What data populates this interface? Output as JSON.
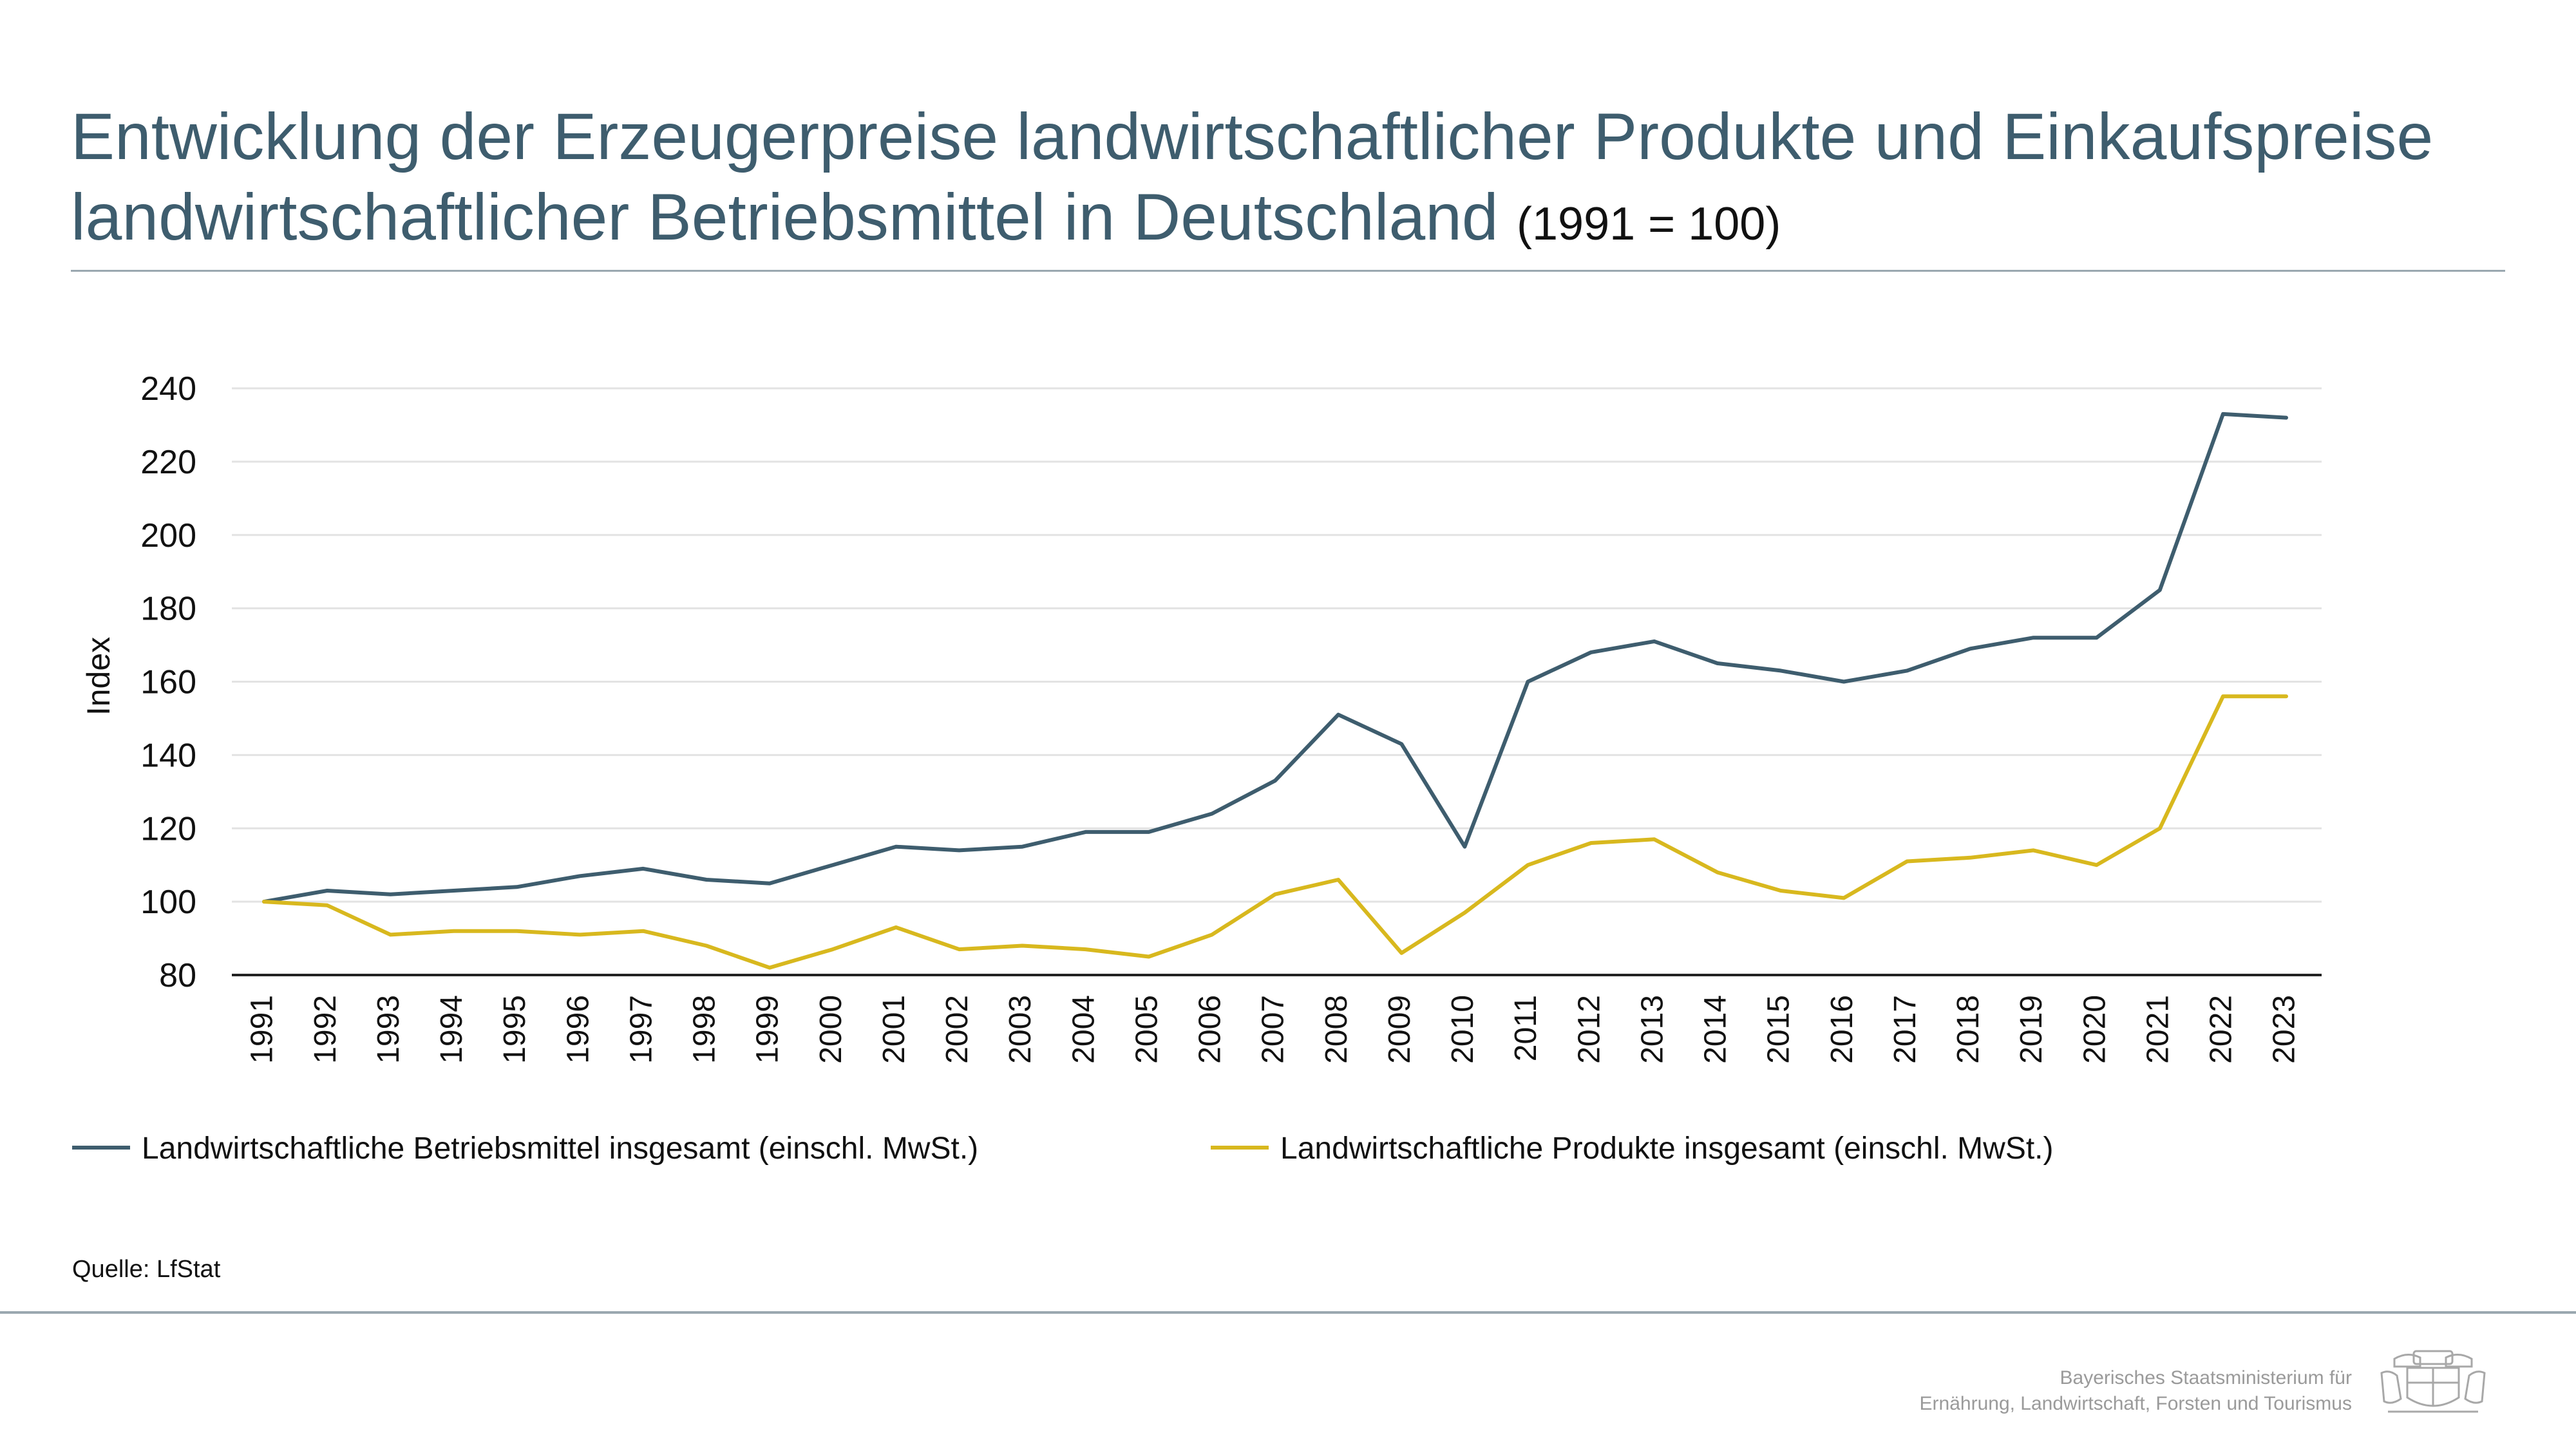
{
  "title": {
    "line1": "Entwicklung der Erzeugerpreise landwirtschaftlicher Produkte und Einkaufspreise",
    "line2": "landwirtschaftlicher Betriebsmittel in Deutschland",
    "suffix": "(1991 = 100)"
  },
  "source": "Quelle: LfStat",
  "ministry": {
    "line1": "Bayerisches Staatsministerium für",
    "line2": "Ernährung, Landwirtschaft, Forsten und Tourismus"
  },
  "chart_data": {
    "type": "line",
    "ylabel": "Index",
    "ylim": [
      80,
      240
    ],
    "yticks": [
      80,
      100,
      120,
      140,
      160,
      180,
      200,
      220,
      240
    ],
    "grid": "horizontal",
    "legend_position": "bottom",
    "x": [
      "1991",
      "1992",
      "1993",
      "1994",
      "1995",
      "1996",
      "1997",
      "1998",
      "1999",
      "2000",
      "2001",
      "2002",
      "2003",
      "2004",
      "2005",
      "2006",
      "2007",
      "2008",
      "2009",
      "2010",
      "2011",
      "2012",
      "2013",
      "2014",
      "2015",
      "2016",
      "2017",
      "2018",
      "2019",
      "2020",
      "2021",
      "2022",
      "2023"
    ],
    "series": [
      {
        "name": "Landwirtschaftliche Betriebsmittel insgesamt (einschl. MwSt.)",
        "color": "#3e5d6e",
        "values": [
          100,
          103,
          102,
          103,
          104,
          107,
          109,
          106,
          105,
          110,
          115,
          114,
          115,
          119,
          119,
          124,
          133,
          151,
          143,
          115,
          160,
          168,
          171,
          165,
          163,
          160,
          163,
          169,
          172,
          172,
          185,
          233,
          232
        ]
      },
      {
        "name": "Landwirtschaftliche Produkte insgesamt (einschl. MwSt.)",
        "color": "#d8b81e",
        "values": [
          100,
          99,
          91,
          92,
          92,
          91,
          92,
          88,
          82,
          87,
          93,
          87,
          88,
          87,
          85,
          91,
          102,
          106,
          86,
          97,
          110,
          116,
          117,
          108,
          103,
          101,
          111,
          112,
          114,
          110,
          120,
          156,
          156
        ]
      }
    ]
  }
}
